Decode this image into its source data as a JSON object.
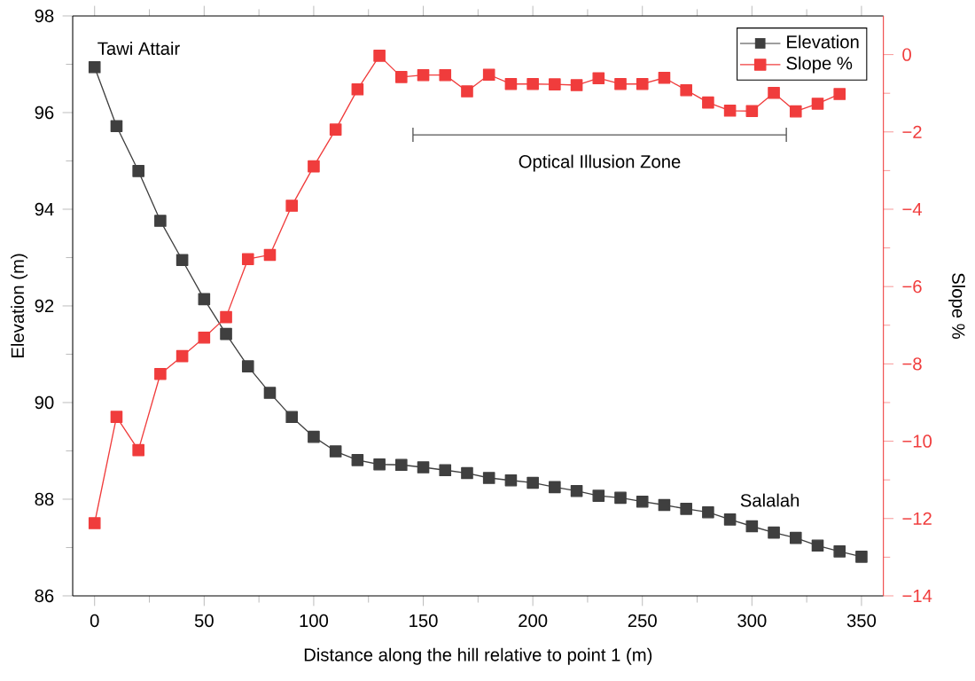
{
  "chart_data": {
    "type": "line",
    "xlabel": "Distance along the hill relative to point 1 (m)",
    "ylabel": "Elevation (m)",
    "y2label": "Slope %",
    "x": [
      0,
      10,
      20,
      30,
      40,
      50,
      60,
      70,
      80,
      90,
      100,
      110,
      120,
      130,
      140,
      150,
      160,
      170,
      180,
      190,
      200,
      210,
      220,
      230,
      240,
      250,
      260,
      270,
      280,
      290,
      300,
      310,
      320,
      330,
      340,
      350
    ],
    "series": [
      {
        "name": "Elevation",
        "color": "#3f3f3f",
        "values": [
          96.94,
          95.72,
          94.79,
          93.76,
          92.95,
          92.14,
          91.42,
          90.75,
          90.2,
          89.7,
          89.29,
          88.99,
          88.81,
          88.72,
          88.71,
          88.66,
          88.6,
          88.54,
          88.44,
          88.39,
          88.34,
          88.25,
          88.17,
          88.07,
          88.03,
          87.95,
          87.88,
          87.8,
          87.73,
          87.58,
          87.44,
          87.31,
          87.2,
          87.04,
          86.92,
          86.81
        ]
      },
      {
        "name": "Slope %",
        "color": "#f03c3c",
        "axis": "y2",
        "values": [
          -12.12,
          -9.37,
          -10.23,
          -8.26,
          -7.8,
          -7.32,
          -6.79,
          -5.29,
          -5.18,
          -3.91,
          -2.89,
          -1.94,
          -0.9,
          -0.03,
          -0.58,
          -0.53,
          -0.53,
          -0.95,
          -0.52,
          -0.76,
          -0.76,
          -0.77,
          -0.79,
          -0.61,
          -0.76,
          -0.76,
          -0.6,
          -0.92,
          -1.24,
          -1.45,
          -1.46,
          -0.99,
          -1.47,
          -1.27,
          -1.02,
          null
        ]
      }
    ],
    "xlim": [
      -10,
      360
    ],
    "xticks": [
      0,
      50,
      100,
      150,
      200,
      250,
      300,
      350
    ],
    "ylim": [
      86,
      98
    ],
    "yticks": [
      86,
      88,
      90,
      92,
      94,
      96,
      98
    ],
    "y2lim": [
      -14,
      1
    ],
    "y2ticks": [
      {
        "value": -14,
        "label": "−14"
      },
      {
        "value": -12,
        "label": "−12"
      },
      {
        "value": -10,
        "label": "−10"
      },
      {
        "value": -8,
        "label": "−8"
      },
      {
        "value": -6,
        "label": "−6"
      },
      {
        "value": -4,
        "label": "−4"
      },
      {
        "value": -2,
        "label": "−2"
      },
      0
    ],
    "annotations": [
      "Tawi Attair",
      "Salalah",
      "Optical Illusion Zone"
    ],
    "legend": "top right",
    "marker": "square",
    "line_style": "solid",
    "grid": false
  }
}
